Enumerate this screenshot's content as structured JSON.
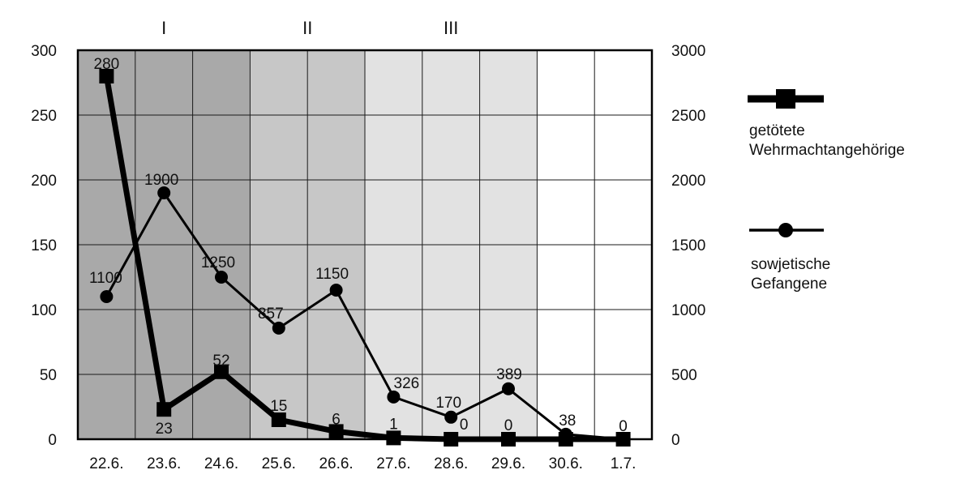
{
  "chart_data": {
    "type": "line",
    "categories": [
      "22.6.",
      "23.6.",
      "24.6.",
      "25.6.",
      "26.6.",
      "27.6.",
      "28.6.",
      "29.6.",
      "30.6.",
      "1.7."
    ],
    "phases": [
      {
        "label": "I",
        "from": 0,
        "to": 3,
        "color": "#a9a9a9"
      },
      {
        "label": "II",
        "from": 3,
        "to": 5,
        "color": "#c7c7c7"
      },
      {
        "label": "III",
        "from": 5,
        "to": 8,
        "color": "#e2e2e2"
      },
      {
        "label": "",
        "from": 8,
        "to": 10,
        "color": "#ffffff"
      }
    ],
    "y_left": {
      "min": 0,
      "max": 300,
      "ticks": [
        "0",
        "50",
        "100",
        "150",
        "200",
        "250",
        "300"
      ]
    },
    "y_right": {
      "min": 0,
      "max": 3000,
      "ticks": [
        "0",
        "500",
        "1000",
        "1500",
        "2000",
        "2500",
        "3000"
      ]
    },
    "grid": true,
    "series": [
      {
        "name": "getötete Wehrmachtangehörige",
        "axis": "left",
        "marker": "square",
        "values": [
          280,
          23,
          52,
          15,
          6,
          1,
          0,
          0,
          0,
          0
        ],
        "labels": [
          "280",
          "23",
          "52",
          "15",
          "6",
          "1",
          "0",
          "0",
          "",
          ""
        ]
      },
      {
        "name": "sowjetische Gefangene",
        "axis": "right",
        "marker": "circle",
        "values": [
          1100,
          1900,
          1250,
          857,
          1150,
          326,
          170,
          389,
          38,
          0
        ],
        "labels": [
          "1100",
          "1900",
          "1250",
          "857",
          "1150",
          "326",
          "170",
          "389",
          "38",
          "0"
        ]
      }
    ],
    "legend": {
      "position": "right",
      "items": [
        {
          "marker": "square",
          "lines": [
            "getötete",
            "Wehrmachtangehörige"
          ]
        },
        {
          "marker": "circle",
          "lines": [
            "sowjetische",
            "Gefangene"
          ]
        }
      ]
    }
  }
}
